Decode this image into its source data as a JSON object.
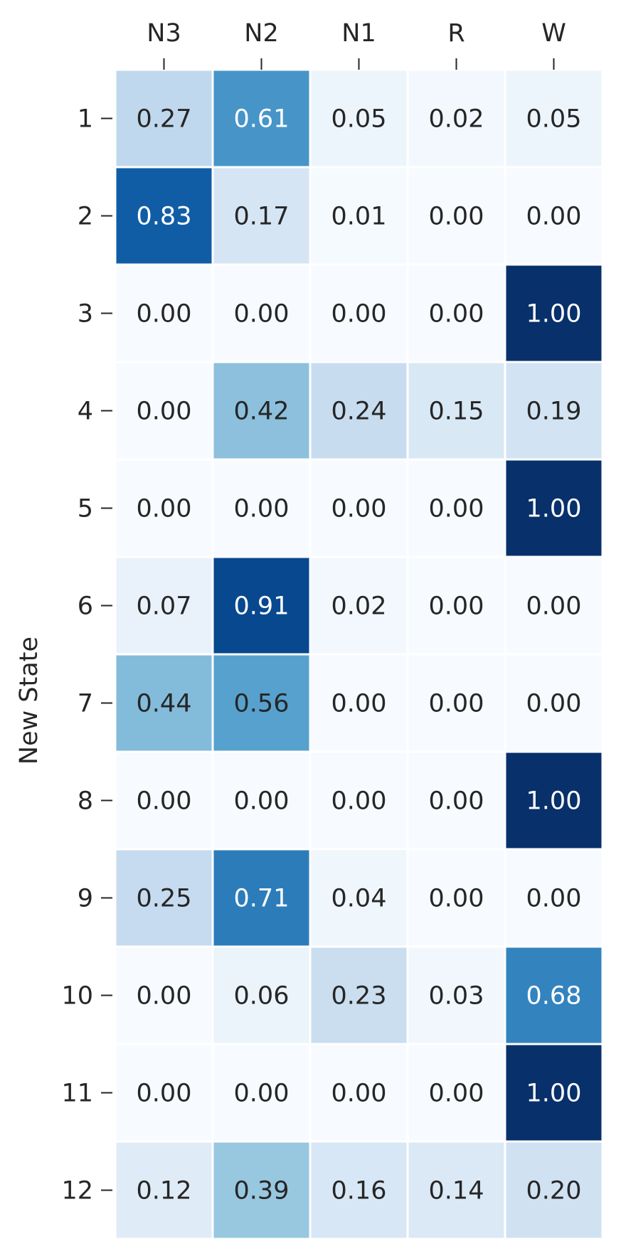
{
  "chart_data": {
    "type": "heatmap",
    "title": "",
    "xlabel": "",
    "ylabel": "New State",
    "x_categories": [
      "N3",
      "N2",
      "N1",
      "R",
      "W"
    ],
    "y_categories": [
      "1",
      "2",
      "3",
      "4",
      "5",
      "6",
      "7",
      "8",
      "9",
      "10",
      "11",
      "12"
    ],
    "values": [
      [
        0.27,
        0.61,
        0.05,
        0.02,
        0.05
      ],
      [
        0.83,
        0.17,
        0.01,
        0.0,
        0.0
      ],
      [
        0.0,
        0.0,
        0.0,
        0.0,
        1.0
      ],
      [
        0.0,
        0.42,
        0.24,
        0.15,
        0.19
      ],
      [
        0.0,
        0.0,
        0.0,
        0.0,
        1.0
      ],
      [
        0.07,
        0.91,
        0.02,
        0.0,
        0.0
      ],
      [
        0.44,
        0.56,
        0.0,
        0.0,
        0.0
      ],
      [
        0.0,
        0.0,
        0.0,
        0.0,
        1.0
      ],
      [
        0.25,
        0.71,
        0.04,
        0.0,
        0.0
      ],
      [
        0.0,
        0.06,
        0.23,
        0.03,
        0.68
      ],
      [
        0.0,
        0.0,
        0.0,
        0.0,
        1.0
      ],
      [
        0.12,
        0.39,
        0.16,
        0.14,
        0.2
      ]
    ],
    "value_format": "0.00",
    "colormap": "Blues",
    "vmin": 0,
    "vmax": 1,
    "x_axis_position": "top",
    "colorbar": false,
    "cell_border_color": "#ffffff",
    "text_color_dark": "#262626",
    "text_color_light": "#ffffff"
  }
}
